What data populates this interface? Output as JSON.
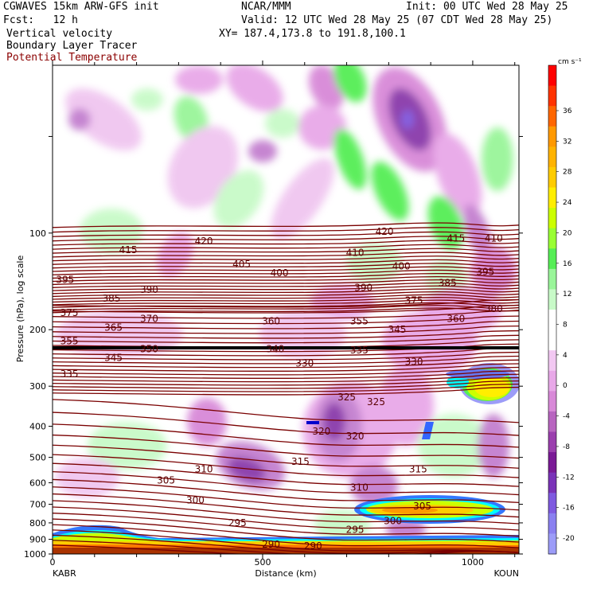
{
  "header": {
    "title": "CGWAVES 15km ARW-GFS init",
    "org": "NCAR/MMM",
    "init": "Init: 00 UTC Wed 28 May 25",
    "fcst": "Fcst:   12 h",
    "valid": "Valid: 12 UTC Wed 28 May 25 (07 CDT Wed 28 May 25)",
    "field1": "Vertical velocity",
    "field2": "Boundary Layer Tracer",
    "field3": "Potential Temperature",
    "xy": "XY= 187.4,173.8 to 191.8,100.1"
  },
  "chart_data": {
    "type": "heatmap",
    "ylabel": "Pressure (hPa), log scale",
    "xlabel": "Distance (km)",
    "x_range": [
      0,
      1110
    ],
    "y_range_hPa": [
      1000,
      30
    ],
    "y_scale": "log",
    "x_ticks": [
      0,
      500,
      1000
    ],
    "y_ticks": [
      100,
      200,
      300,
      400,
      500,
      600,
      700,
      800,
      900,
      1000
    ],
    "left_station": "KABR",
    "right_station": "KOUN",
    "colorbar": {
      "units": "cm s⁻¹",
      "labels": [
        36,
        32,
        28,
        24,
        20,
        16,
        12,
        8,
        4,
        0,
        -4,
        -8,
        -12,
        -16,
        -20
      ],
      "colors": [
        "#ff0000",
        "#ff3300",
        "#ff6600",
        "#ff9900",
        "#ffb300",
        "#ffcc00",
        "#ffee00",
        "#ccff00",
        "#99ff33",
        "#55ee55",
        "#99f599",
        "#c8fac8",
        "#ffffff",
        "#ffffff",
        "#f2c8f2",
        "#e8a8e8",
        "#d889d8",
        "#b865c0",
        "#9b3fae",
        "#7a1a96",
        "#7a33b8",
        "#7f5ae0",
        "#8a80f0",
        "#9c9cf8"
      ]
    },
    "theta_contours": [
      {
        "label": "415",
        "x": 180,
        "p": 113
      },
      {
        "label": "420",
        "x": 360,
        "p": 106
      },
      {
        "label": "420",
        "x": 790,
        "p": 99
      },
      {
        "label": "415",
        "x": 960,
        "p": 104
      },
      {
        "label": "410",
        "x": 1050,
        "p": 104
      },
      {
        "label": "405",
        "x": 450,
        "p": 125
      },
      {
        "label": "410",
        "x": 720,
        "p": 115
      },
      {
        "label": "400",
        "x": 540,
        "p": 133
      },
      {
        "label": "400",
        "x": 830,
        "p": 127
      },
      {
        "label": "395",
        "x": 30,
        "p": 140
      },
      {
        "label": "395",
        "x": 1030,
        "p": 132
      },
      {
        "label": "390",
        "x": 230,
        "p": 150
      },
      {
        "label": "390",
        "x": 740,
        "p": 148
      },
      {
        "label": "385",
        "x": 140,
        "p": 160
      },
      {
        "label": "385",
        "x": 940,
        "p": 143
      },
      {
        "label": "375",
        "x": 40,
        "p": 177
      },
      {
        "label": "375",
        "x": 860,
        "p": 162
      },
      {
        "label": "380",
        "x": 1050,
        "p": 172
      },
      {
        "label": "370",
        "x": 230,
        "p": 185
      },
      {
        "label": "360",
        "x": 520,
        "p": 188
      },
      {
        "label": "360",
        "x": 960,
        "p": 185
      },
      {
        "label": "365",
        "x": 145,
        "p": 197
      },
      {
        "label": "355",
        "x": 730,
        "p": 188
      },
      {
        "label": "345",
        "x": 820,
        "p": 200
      },
      {
        "label": "355",
        "x": 40,
        "p": 217
      },
      {
        "label": "350",
        "x": 230,
        "p": 230
      },
      {
        "label": "340",
        "x": 530,
        "p": 230
      },
      {
        "label": "335",
        "x": 730,
        "p": 232
      },
      {
        "label": "345",
        "x": 145,
        "p": 245
      },
      {
        "label": "330",
        "x": 600,
        "p": 255
      },
      {
        "label": "330",
        "x": 860,
        "p": 252
      },
      {
        "label": "335",
        "x": 40,
        "p": 275
      },
      {
        "label": "325",
        "x": 700,
        "p": 325
      },
      {
        "label": "325",
        "x": 770,
        "p": 336
      },
      {
        "label": "320",
        "x": 640,
        "p": 415
      },
      {
        "label": "320",
        "x": 720,
        "p": 430
      },
      {
        "label": "315",
        "x": 590,
        "p": 515
      },
      {
        "label": "315",
        "x": 870,
        "p": 545
      },
      {
        "label": "310",
        "x": 360,
        "p": 545
      },
      {
        "label": "310",
        "x": 730,
        "p": 620
      },
      {
        "label": "305",
        "x": 270,
        "p": 590
      },
      {
        "label": "305",
        "x": 880,
        "p": 710
      },
      {
        "label": "300",
        "x": 340,
        "p": 680
      },
      {
        "label": "300",
        "x": 810,
        "p": 790
      },
      {
        "label": "295",
        "x": 440,
        "p": 800
      },
      {
        "label": "295",
        "x": 720,
        "p": 840
      },
      {
        "label": "290",
        "x": 520,
        "p": 935
      },
      {
        "label": "290",
        "x": 620,
        "p": 945
      }
    ]
  }
}
